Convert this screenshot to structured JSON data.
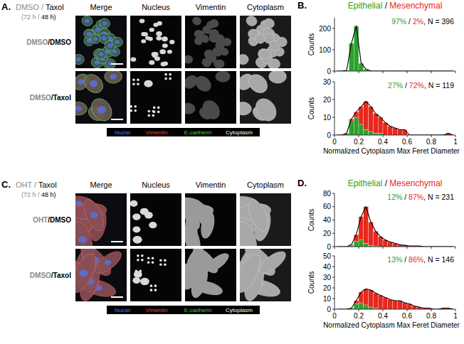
{
  "image_panels": [
    {
      "label": "A.",
      "title": [
        "DMSO /",
        " Taxol"
      ],
      "times": [
        "(72 h /",
        " 48 h)"
      ],
      "columns": [
        "Merge",
        "Nucleus",
        "Vimentin",
        "Cytoplasm"
      ],
      "rows": [
        [
          "DMSO",
          "/DMSO"
        ],
        [
          "DMSO",
          "/Taxol"
        ]
      ],
      "legend": [
        {
          "text": "Nuclei",
          "color": "#4a7bff"
        },
        {
          "text": "Vimentin",
          "color": "#ff3b30"
        },
        {
          "text": "E-cadherin",
          "color": "#3cd33c"
        },
        {
          "text": "Cytoplasm",
          "color": "#ffffff"
        }
      ]
    },
    {
      "label": "C.",
      "title": [
        "OHT /",
        " Taxol"
      ],
      "times": [
        "(72 h /",
        " 48 h)"
      ],
      "columns": [
        "Merge",
        "Nucleus",
        "Vimentin",
        "Cytoplasm"
      ],
      "rows": [
        [
          "OHT",
          "/DMSO"
        ],
        [
          "DMSO",
          "/Taxol"
        ]
      ],
      "legend": [
        {
          "text": "Nuclei",
          "color": "#4a7bff"
        },
        {
          "text": "Vimentin",
          "color": "#ff3b30"
        },
        {
          "text": "E-cadherin",
          "color": "#3cd33c"
        },
        {
          "text": "Cytoplasm",
          "color": "#ffffff"
        }
      ]
    }
  ],
  "histogram_panels": [
    {
      "label": "B.",
      "separator": " / "
    },
    {
      "label": "D.",
      "separator": " / "
    }
  ],
  "chart_data": [
    {
      "type": "histogram",
      "stacked": true,
      "tick_labels": "y",
      "bins": [
        0,
        0.04,
        0.08,
        0.12,
        0.16,
        0.2,
        0.24,
        0.28,
        0.32,
        0.36,
        0.4,
        0.44,
        0.48,
        0.52,
        0.56,
        0.6,
        0.64,
        0.68,
        0.72,
        0.76,
        0.8,
        0.84,
        0.88,
        0.92,
        0.96,
        1
      ],
      "series": [
        {
          "name": "Epithelial",
          "color": "#2ca02c",
          "values": [
            0,
            0,
            3,
            130,
            210,
            35,
            7,
            0,
            0,
            0,
            0,
            0,
            0,
            0,
            0,
            0,
            0,
            0,
            0,
            0,
            0,
            0,
            0,
            0,
            0
          ]
        },
        {
          "name": "Mesenchymal",
          "color": "#e8281e",
          "values": [
            0,
            0,
            0,
            0,
            2,
            3,
            2,
            1,
            0,
            0,
            0,
            0,
            0,
            0,
            0,
            0,
            0,
            0,
            0,
            0,
            0,
            0,
            0,
            0,
            0
          ]
        }
      ],
      "xlim": [
        0,
        1
      ],
      "xticks": [
        0,
        0.2,
        0.4,
        0.6,
        0.8,
        1
      ],
      "ylim": [
        0,
        250
      ],
      "yticks": [
        0,
        100,
        200
      ],
      "ylabel": "Counts",
      "annotation": {
        "epithelial": "97%",
        "separator": " / ",
        "mesenchymal": "2%",
        "count": ", N = 396"
      }
    },
    {
      "type": "histogram",
      "stacked": true,
      "bins": [
        0,
        0.04,
        0.08,
        0.12,
        0.16,
        0.2,
        0.24,
        0.28,
        0.32,
        0.36,
        0.4,
        0.44,
        0.48,
        0.52,
        0.56,
        0.6,
        0.64,
        0.68,
        0.72,
        0.76,
        0.8,
        0.84,
        0.88,
        0.92,
        0.96,
        1
      ],
      "series": [
        {
          "color": "#2ca02c",
          "values": [
            0,
            0,
            1,
            8,
            10,
            6,
            3,
            2,
            1,
            1,
            0,
            0,
            0,
            0,
            0,
            0,
            0,
            0,
            0,
            0,
            0,
            0,
            0,
            0,
            0
          ]
        },
        {
          "color": "#e8281e",
          "values": [
            0,
            0,
            0,
            1,
            3,
            10,
            16,
            14,
            11,
            9,
            7,
            5,
            4,
            3,
            3,
            0,
            0,
            0,
            0,
            0,
            0,
            0,
            0,
            1,
            0
          ]
        }
      ],
      "xlim": [
        0,
        1
      ],
      "xticks": [
        0,
        0.2,
        0.4,
        0.6,
        0.8,
        1
      ],
      "ylim": [
        0,
        30
      ],
      "yticks": [
        0,
        10,
        20,
        30
      ],
      "ylabel": "Counts",
      "xlabel": "Normalized Cytoplasm Max Feret Diameter",
      "annotation": {
        "epithelial": "27%",
        "separator": " / ",
        "mesenchymal": "72%",
        "count": ", N = 119"
      }
    },
    {
      "type": "histogram",
      "stacked": true,
      "tick_labels": "y",
      "bins": [
        0,
        0.04,
        0.08,
        0.12,
        0.16,
        0.2,
        0.24,
        0.28,
        0.32,
        0.36,
        0.4,
        0.44,
        0.48,
        0.52,
        0.56,
        0.6,
        0.64,
        0.68,
        0.72,
        0.76,
        0.8,
        0.84,
        0.88,
        0.92,
        0.96,
        1
      ],
      "series": [
        {
          "name": "Epithelial",
          "color": "#2ca02c",
          "values": [
            0,
            0,
            0,
            2,
            8,
            10,
            5,
            2,
            1,
            0,
            0,
            0,
            0,
            0,
            0,
            0,
            0,
            0,
            0,
            0,
            0,
            0,
            0,
            0,
            0
          ]
        },
        {
          "name": "Mesenchymal",
          "color": "#e8281e",
          "values": [
            0,
            0,
            0,
            1,
            10,
            35,
            55,
            35,
            22,
            15,
            10,
            7,
            5,
            3,
            2,
            1,
            1,
            1,
            0,
            0,
            0,
            0,
            0,
            0,
            0
          ]
        }
      ],
      "xlim": [
        0,
        1
      ],
      "xticks": [
        0,
        0.2,
        0.4,
        0.6,
        0.8,
        1
      ],
      "ylim": [
        0,
        80
      ],
      "yticks": [
        0,
        20,
        40,
        60,
        80
      ],
      "ylabel": "Counts",
      "annotation": {
        "epithelial": "12%",
        "separator": " / ",
        "mesenchymal": "87%",
        "count": ", N = 231"
      }
    },
    {
      "type": "histogram",
      "stacked": true,
      "bins": [
        0,
        0.04,
        0.08,
        0.12,
        0.16,
        0.2,
        0.24,
        0.28,
        0.32,
        0.36,
        0.4,
        0.44,
        0.48,
        0.52,
        0.56,
        0.6,
        0.64,
        0.68,
        0.72,
        0.76,
        0.8,
        0.84,
        0.88,
        0.92,
        0.96,
        1
      ],
      "series": [
        {
          "color": "#2ca02c",
          "values": [
            0,
            0,
            0,
            1,
            5,
            6,
            4,
            2,
            1,
            0,
            0,
            0,
            0,
            0,
            0,
            0,
            0,
            0,
            0,
            0,
            0,
            0,
            0,
            0,
            0
          ]
        },
        {
          "color": "#e8281e",
          "values": [
            0,
            0,
            0,
            0,
            3,
            10,
            15,
            16,
            14,
            13,
            11,
            9,
            8,
            8,
            6,
            5,
            3,
            2,
            1,
            1,
            0,
            0,
            1,
            1,
            0
          ]
        }
      ],
      "xlim": [
        0,
        1
      ],
      "xticks": [
        0,
        0.2,
        0.4,
        0.6,
        0.8,
        1
      ],
      "ylim": [
        0,
        50
      ],
      "yticks": [
        0,
        10,
        20,
        30,
        40,
        50
      ],
      "ylabel": "Counts",
      "xlabel": "Normalized Cytoplasm Max Feret Diameter",
      "annotation": {
        "epithelial": "13%",
        "separator": " / ",
        "mesenchymal": "86%",
        "count": ", N = 146"
      }
    }
  ]
}
